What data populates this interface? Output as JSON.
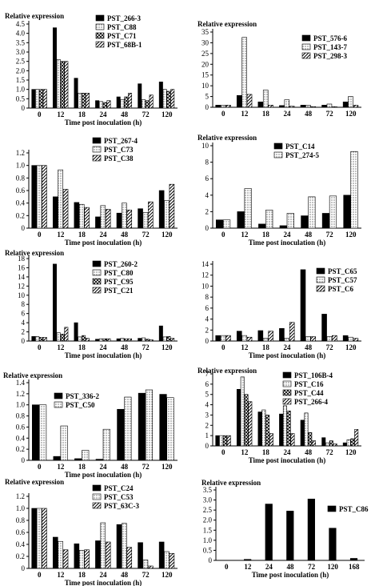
{
  "chart_data": [
    {
      "type": "bar",
      "ylabel": "Relative expression",
      "xlabel": "Time post inoculation (h)",
      "categories": [
        "0",
        "12",
        "18",
        "24",
        "48",
        "72",
        "120"
      ],
      "yticks": [
        "0",
        "0.5",
        "1.0",
        "1.5",
        "2.0",
        "2.5",
        "3.0",
        "3.5",
        "4.0",
        "4.5"
      ],
      "ylim": [
        0,
        4.5
      ],
      "series": [
        {
          "name": "PST_266-3",
          "pattern": "solid",
          "values": [
            1.0,
            4.3,
            1.6,
            0.4,
            0.6,
            1.3,
            1.4
          ]
        },
        {
          "name": "PST_C88",
          "pattern": "dots",
          "values": [
            1.0,
            2.6,
            0.8,
            0.35,
            0.45,
            0.45,
            1.0
          ]
        },
        {
          "name": "PST_C71",
          "pattern": "cross",
          "values": [
            1.0,
            2.5,
            0.8,
            0.3,
            0.6,
            0.4,
            0.9
          ]
        },
        {
          "name": "PST_68B-1",
          "pattern": "diag",
          "values": [
            1.0,
            2.5,
            0.8,
            0.4,
            0.8,
            0.7,
            1.0
          ]
        }
      ]
    },
    {
      "type": "bar",
      "ylabel": "Relative expression",
      "xlabel": "",
      "categories": [
        "0",
        "12",
        "18",
        "24",
        "48",
        "72",
        "120"
      ],
      "yticks": [
        "0",
        "5",
        "10",
        "15",
        "20",
        "25",
        "30",
        "35"
      ],
      "ylim": [
        0,
        35
      ],
      "series": [
        {
          "name": "PST_576-6",
          "pattern": "solid",
          "values": [
            1.0,
            5.5,
            2.5,
            0.8,
            1.0,
            1.0,
            2.5
          ]
        },
        {
          "name": "PST_143-7",
          "pattern": "dots",
          "values": [
            1.0,
            32.5,
            8.0,
            3.5,
            1.0,
            1.5,
            5.0
          ]
        },
        {
          "name": "PST_298-3",
          "pattern": "diag",
          "values": [
            1.0,
            6.0,
            1.0,
            0.5,
            0.3,
            0.3,
            1.0
          ]
        }
      ]
    },
    {
      "type": "bar",
      "ylabel": "",
      "xlabel": "Time post inoculation (h)",
      "categories": [
        "0",
        "12",
        "18",
        "24",
        "48",
        "72",
        "120"
      ],
      "yticks": [
        "0",
        "0.2",
        "0.4",
        "0.6",
        "0.8",
        "1.0",
        "1.2"
      ],
      "ylim": [
        0,
        1.2
      ],
      "series": [
        {
          "name": "PST_267-4",
          "pattern": "solid",
          "values": [
            1.0,
            0.5,
            0.41,
            0.18,
            0.24,
            0.31,
            0.6
          ]
        },
        {
          "name": "PST_C73",
          "pattern": "dots",
          "values": [
            1.0,
            0.93,
            0.38,
            0.36,
            0.4,
            0.25,
            0.44
          ]
        },
        {
          "name": "PST_C38",
          "pattern": "diag",
          "values": [
            1.0,
            0.62,
            0.33,
            0.3,
            0.29,
            0.42,
            0.7
          ]
        }
      ]
    },
    {
      "type": "bar",
      "ylabel": "Relative expression",
      "xlabel": "Time post inoculation (h)",
      "categories": [
        "0",
        "12",
        "18",
        "24",
        "48",
        "72",
        "120"
      ],
      "yticks": [
        "0",
        "2",
        "4",
        "6",
        "8",
        "10"
      ],
      "ylim": [
        0,
        10
      ],
      "series": [
        {
          "name": "PST_C14",
          "pattern": "solid",
          "values": [
            1.0,
            2.0,
            0.5,
            0.3,
            1.5,
            1.8,
            4.0
          ]
        },
        {
          "name": "PST_274-5",
          "pattern": "dots",
          "values": [
            1.0,
            4.8,
            2.2,
            1.8,
            3.8,
            3.9,
            9.3
          ]
        }
      ]
    },
    {
      "type": "bar",
      "ylabel": "Relative expression",
      "xlabel": "Time post inoculation (h)",
      "categories": [
        "0",
        "12",
        "18",
        "24",
        "48",
        "72",
        "120"
      ],
      "yticks": [
        "0",
        "2",
        "4",
        "6",
        "8",
        "10",
        "12",
        "14",
        "16",
        "18"
      ],
      "ylim": [
        0,
        18
      ],
      "series": [
        {
          "name": "PST_260-2",
          "pattern": "solid",
          "values": [
            1.0,
            16.8,
            4.0,
            0.4,
            0.5,
            0.6,
            3.3
          ]
        },
        {
          "name": "PST_C80",
          "pattern": "dots",
          "values": [
            1.0,
            1.8,
            0.9,
            0.5,
            0.6,
            0.7,
            0.9
          ]
        },
        {
          "name": "PST_C95",
          "pattern": "cross",
          "values": [
            0.8,
            1.5,
            1.2,
            0.5,
            0.5,
            0.4,
            1.0
          ]
        },
        {
          "name": "PST_C21",
          "pattern": "diag",
          "values": [
            0.8,
            3.0,
            0.6,
            0.5,
            0.5,
            0.3,
            0.6
          ]
        }
      ]
    },
    {
      "type": "bar",
      "ylabel": "",
      "xlabel": "Time post inoculation (h)",
      "categories": [
        "0",
        "12",
        "18",
        "24",
        "48",
        "72",
        "120"
      ],
      "yticks": [
        "0",
        "2",
        "4",
        "6",
        "8",
        "10",
        "12",
        "14"
      ],
      "ylim": [
        0,
        14
      ],
      "series": [
        {
          "name": "PST_C65",
          "pattern": "solid",
          "values": [
            1.0,
            1.8,
            1.9,
            2.3,
            13.0,
            4.9,
            1.0
          ]
        },
        {
          "name": "PST_C57",
          "pattern": "dots",
          "values": [
            1.0,
            1.0,
            0.5,
            0.5,
            0.8,
            0.8,
            0.7
          ]
        },
        {
          "name": "PST_C6",
          "pattern": "diag",
          "values": [
            1.0,
            0.7,
            1.8,
            3.4,
            0.8,
            1.0,
            0.5
          ]
        }
      ]
    },
    {
      "type": "bar",
      "ylabel": "Relative expression",
      "xlabel": "Time post inoculation (h)",
      "categories": [
        "0",
        "12",
        "18",
        "24",
        "48",
        "72",
        "120"
      ],
      "yticks": [
        "0",
        "0.2",
        "0.4",
        "0.6",
        "0.8",
        "1.0",
        "1.2",
        "1.4"
      ],
      "ylim": [
        0,
        1.4
      ],
      "series": [
        {
          "name": "PST_336-2",
          "pattern": "solid",
          "values": [
            1.0,
            0.07,
            0.03,
            0.02,
            0.92,
            1.21,
            1.19
          ]
        },
        {
          "name": "PST_C50",
          "pattern": "dots",
          "values": [
            1.0,
            0.62,
            0.18,
            0.56,
            1.14,
            1.27,
            1.13
          ]
        }
      ]
    },
    {
      "type": "bar",
      "ylabel": "Relative expression",
      "xlabel": "Time post inoculation (h)",
      "categories": [
        "0",
        "12",
        "18",
        "24",
        "48",
        "72",
        "120"
      ],
      "yticks": [
        "0",
        "1",
        "2",
        "3",
        "4",
        "5",
        "6",
        "7"
      ],
      "ylim": [
        0,
        7
      ],
      "series": [
        {
          "name": "PST_106B-4",
          "pattern": "solid",
          "values": [
            1.0,
            5.5,
            3.3,
            3.1,
            2.5,
            0.8,
            0.3
          ]
        },
        {
          "name": "PST_C16",
          "pattern": "dots",
          "values": [
            1.0,
            6.7,
            3.5,
            3.9,
            3.2,
            0.3,
            0.6
          ]
        },
        {
          "name": "PST_C44",
          "pattern": "cross",
          "values": [
            1.0,
            5.0,
            3.0,
            3.4,
            1.3,
            0.5,
            0.7
          ]
        },
        {
          "name": "PST_266-4",
          "pattern": "diag",
          "values": [
            1.0,
            4.3,
            1.2,
            1.2,
            0.5,
            0.2,
            1.6
          ]
        }
      ]
    },
    {
      "type": "bar",
      "ylabel": "Relative expression",
      "xlabel": "Time post inoculation (h)",
      "categories": [
        "0",
        "12",
        "18",
        "24",
        "48",
        "72",
        "120"
      ],
      "yticks": [
        "0",
        "0.2",
        "0.4",
        "0.6",
        "0.8",
        "1.0",
        "1.2"
      ],
      "ylim": [
        0,
        1.2
      ],
      "series": [
        {
          "name": "PST_C24",
          "pattern": "solid",
          "values": [
            1.0,
            0.52,
            0.41,
            0.46,
            0.73,
            0.43,
            0.44
          ]
        },
        {
          "name": "PST_C53",
          "pattern": "dots",
          "values": [
            1.0,
            0.45,
            0.3,
            0.76,
            0.75,
            0.14,
            0.28
          ]
        },
        {
          "name": "PST_63C-3",
          "pattern": "diag",
          "values": [
            1.0,
            0.31,
            0.31,
            0.44,
            0.35,
            0.04,
            0.25
          ]
        }
      ]
    },
    {
      "type": "bar",
      "ylabel": "Relative expression",
      "xlabel": "Time post inoculation (h)",
      "categories": [
        "0",
        "12",
        "24",
        "48",
        "72",
        "120",
        "168"
      ],
      "yticks": [
        "0",
        "0.5",
        "1.0",
        "1.5",
        "2.0",
        "2.5",
        "3.0",
        "3.5"
      ],
      "ylim": [
        0,
        3.5
      ],
      "series": [
        {
          "name": "PST_C86",
          "pattern": "solid",
          "values": [
            0.0,
            0.05,
            2.8,
            2.45,
            3.05,
            1.6,
            0.1
          ]
        }
      ]
    }
  ]
}
